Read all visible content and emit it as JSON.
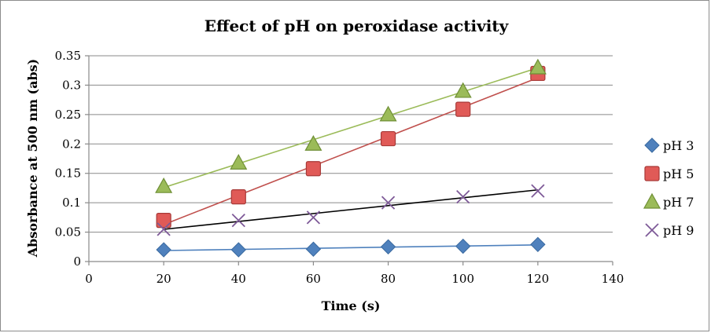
{
  "chart_data": {
    "type": "scatter",
    "title": "Effect of pH on peroxidase activity",
    "xlabel": "Time (s)",
    "ylabel": "Absorbance at 500 nm (abs)",
    "xlim": [
      0,
      140
    ],
    "ylim": [
      0,
      0.35
    ],
    "x_ticks": [
      "0",
      "20",
      "40",
      "60",
      "80",
      "100",
      "120",
      "140"
    ],
    "y_ticks": [
      "0",
      "0.05",
      "0.1",
      "0.15",
      "0.2",
      "0.25",
      "0.3",
      "0.35"
    ],
    "grid": "horizontal",
    "legend_position": "right",
    "series": [
      {
        "name": "pH 3",
        "marker": "diamond",
        "color": "#4f81bd",
        "trendline": "linear",
        "trend_color": "#4f81bd",
        "x": [
          20,
          40,
          60,
          80,
          100,
          120
        ],
        "y": [
          0.02,
          0.02,
          0.021,
          0.025,
          0.026,
          0.029
        ]
      },
      {
        "name": "pH 5",
        "marker": "square",
        "color": "#e05a57",
        "trendline": "linear",
        "trend_color": "#c0504d",
        "x": [
          20,
          40,
          60,
          80,
          100,
          120
        ],
        "y": [
          0.07,
          0.11,
          0.158,
          0.209,
          0.259,
          0.32
        ]
      },
      {
        "name": "pH 7",
        "marker": "triangle",
        "color": "#9bbb59",
        "trendline": "linear",
        "trend_color": "#9bbb59",
        "x": [
          20,
          40,
          60,
          80,
          100,
          120
        ],
        "y": [
          0.128,
          0.168,
          0.2,
          0.25,
          0.29,
          0.33
        ]
      },
      {
        "name": "pH 9",
        "marker": "x",
        "color": "#7e5a98",
        "trendline": "linear",
        "trend_color": "#000000",
        "x": [
          20,
          40,
          60,
          80,
          100,
          120
        ],
        "y": [
          0.055,
          0.07,
          0.075,
          0.1,
          0.11,
          0.12
        ]
      }
    ]
  }
}
